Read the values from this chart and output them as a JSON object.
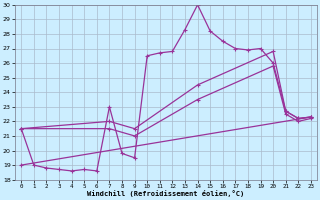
{
  "xlabel": "Windchill (Refroidissement éolien,°C)",
  "xlim": [
    -0.5,
    23.5
  ],
  "ylim": [
    18,
    30
  ],
  "yticks": [
    18,
    19,
    20,
    21,
    22,
    23,
    24,
    25,
    26,
    27,
    28,
    29,
    30
  ],
  "xticks": [
    0,
    1,
    2,
    3,
    4,
    5,
    6,
    7,
    8,
    9,
    10,
    11,
    12,
    13,
    14,
    15,
    16,
    17,
    18,
    19,
    20,
    21,
    22,
    23
  ],
  "background_color": "#cceeff",
  "grid_color": "#aabbcc",
  "line_color": "#993399",
  "line1_x": [
    0,
    1,
    2,
    3,
    4,
    5,
    6,
    7,
    8,
    9,
    10,
    11,
    12,
    13,
    14,
    15,
    16,
    17,
    18,
    19,
    20,
    21,
    22,
    23
  ],
  "line1_y": [
    21.5,
    19.0,
    18.8,
    18.7,
    18.6,
    18.7,
    18.6,
    23.0,
    19.8,
    19.5,
    26.5,
    26.7,
    26.8,
    28.3,
    30.0,
    28.2,
    27.5,
    27.0,
    26.9,
    27.0,
    26.0,
    22.7,
    22.2,
    22.3
  ],
  "line2_x": [
    0,
    7,
    9,
    14,
    20,
    21,
    22,
    23
  ],
  "line2_y": [
    21.5,
    22.0,
    21.5,
    24.5,
    26.8,
    22.7,
    22.2,
    22.3
  ],
  "line3_x": [
    0,
    7,
    9,
    14,
    20,
    21,
    22,
    23
  ],
  "line3_y": [
    21.5,
    21.5,
    21.0,
    23.5,
    25.8,
    22.5,
    22.0,
    22.2
  ],
  "line4_x": [
    0,
    23
  ],
  "line4_y": [
    19.0,
    22.3
  ]
}
